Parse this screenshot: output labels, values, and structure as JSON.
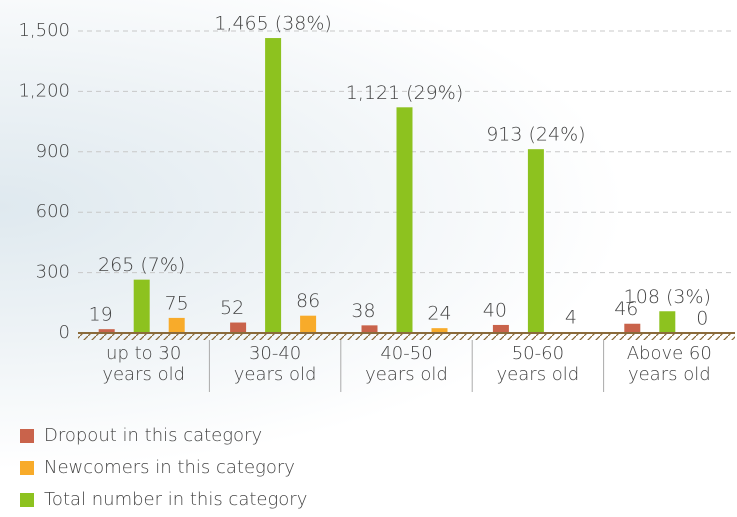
{
  "chart_data": {
    "type": "bar",
    "categories": [
      "up to 30 years old",
      "30-40 years old",
      "40-50 years old",
      "50-60 years old",
      "Above 60 years old"
    ],
    "series": [
      {
        "name": "Dropout in this category",
        "color": "#c9634b",
        "values": [
          19,
          52,
          38,
          40,
          46
        ]
      },
      {
        "name": "Total number in this category",
        "color": "#8dc21f",
        "values": [
          265,
          1465,
          1121,
          913,
          108
        ],
        "value_labels": [
          "265 (7%)",
          "1,465 (38%)",
          "1,121 (29%)",
          "913 (24%)",
          "108 (3%)"
        ]
      },
      {
        "name": "Newcomers in this category",
        "color": "#f8ab2a",
        "values": [
          75,
          86,
          24,
          4,
          0
        ]
      }
    ],
    "legend_order": [
      0,
      2,
      1
    ],
    "ylim": [
      0,
      1500
    ],
    "yticks": [
      0,
      300,
      600,
      900,
      {
        "value": 1200,
        "label": "1,200"
      },
      {
        "value": 1500,
        "label": "1,500"
      }
    ],
    "grid": true
  }
}
